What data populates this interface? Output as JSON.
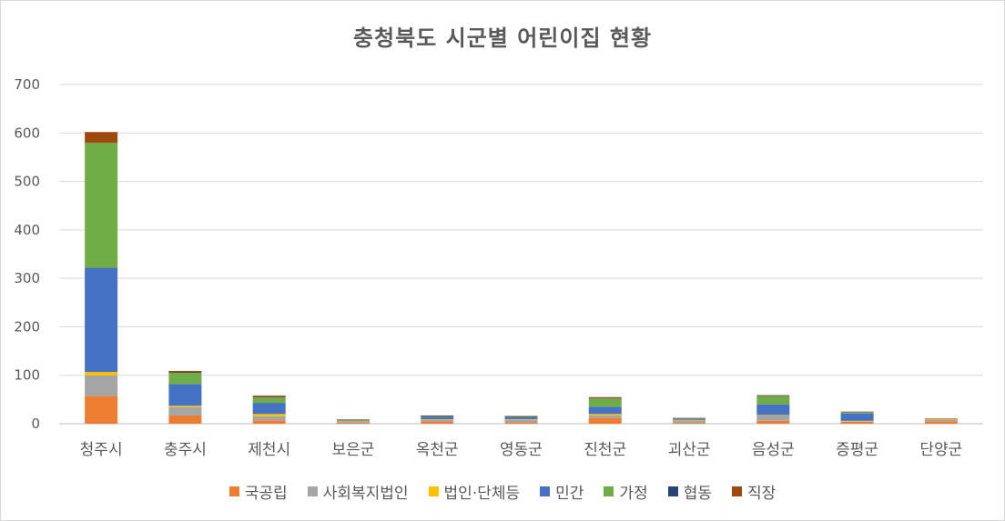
{
  "chart_data": {
    "type": "bar",
    "stacked": true,
    "title": "충청북도 시군별 어린이집 현황",
    "xlabel": "",
    "ylabel": "",
    "ylim": [
      0,
      700
    ],
    "yticks": [
      0,
      100,
      200,
      300,
      400,
      500,
      600,
      700
    ],
    "grid": true,
    "legend_position": "bottom",
    "categories": [
      "청주시",
      "충주시",
      "제천시",
      "보은군",
      "옥천군",
      "영동군",
      "진천군",
      "괴산군",
      "음성군",
      "증평군",
      "단양군"
    ],
    "series": [
      {
        "name": "국공립",
        "color": "#ed7d31",
        "values": [
          57,
          17,
          7,
          2,
          5,
          3,
          12,
          2,
          6,
          4,
          5
        ]
      },
      {
        "name": "사회복지법인",
        "color": "#a5a5a5",
        "values": [
          43,
          17,
          8,
          2,
          3,
          5,
          5,
          4,
          11,
          1,
          4
        ]
      },
      {
        "name": "법인·단체등",
        "color": "#ffc000",
        "values": [
          7,
          3,
          5,
          1,
          1,
          1,
          3,
          1,
          1,
          1,
          1
        ]
      },
      {
        "name": "민간",
        "color": "#4472c4",
        "values": [
          215,
          45,
          23,
          1,
          5,
          4,
          15,
          2,
          22,
          15,
          0
        ]
      },
      {
        "name": "가정",
        "color": "#70ad47",
        "values": [
          258,
          23,
          11,
          1,
          1,
          1,
          17,
          1,
          17,
          2,
          0
        ]
      },
      {
        "name": "협동",
        "color": "#264478",
        "values": [
          0,
          1,
          1,
          1,
          1,
          1,
          1,
          1,
          1,
          1,
          0
        ]
      },
      {
        "name": "직장",
        "color": "#9e480e",
        "values": [
          22,
          3,
          3,
          1,
          1,
          1,
          2,
          1,
          1,
          1,
          1
        ]
      }
    ]
  }
}
